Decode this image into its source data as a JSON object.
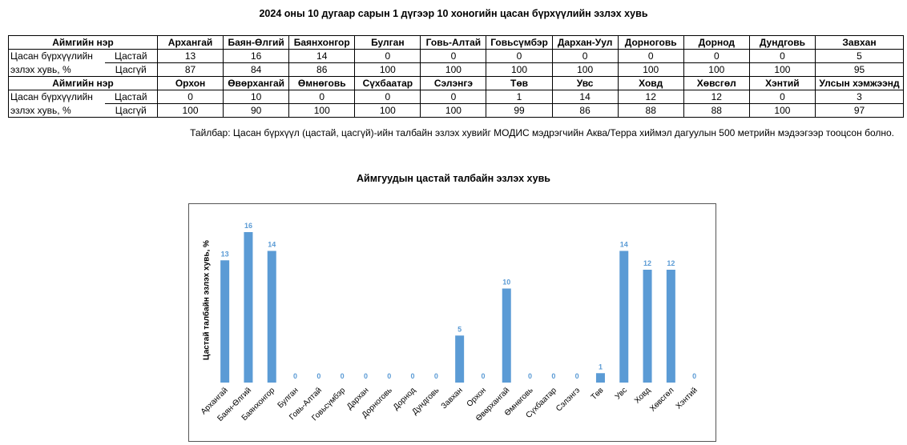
{
  "page_title": "2024 оны 10 дугаар сарын 1 дүгээр 10 хоногийн цасан бүрхүүлийн эзлэх хувь",
  "table": {
    "header_label": "Аймгийн нэр",
    "row_label_1": "Цасан бүрхүүлийн",
    "row_label_2": "эзлэх хувь, %",
    "sub_a": "Цастай",
    "sub_b": "Цасгүй",
    "block1": {
      "names": [
        "Архангай",
        "Баян-Өлгий",
        "Баянхонгор",
        "Булган",
        "Говь-Алтай",
        "Говьсүмбэр",
        "Дархан-Уул",
        "Дорноговь",
        "Дорнод",
        "Дундговь",
        "Завхан"
      ],
      "snow": [
        "13",
        "16",
        "14",
        "0",
        "0",
        "0",
        "0",
        "0",
        "0",
        "0",
        "5"
      ],
      "nosnow": [
        "87",
        "84",
        "86",
        "100",
        "100",
        "100",
        "100",
        "100",
        "100",
        "100",
        "95"
      ]
    },
    "block2": {
      "names": [
        "Орхон",
        "Өвөрхангай",
        "Өмнөговь",
        "Сүхбаатар",
        "Сэлэнгэ",
        "Төв",
        "Увс",
        "Ховд",
        "Хөвсгөл",
        "Хэнтий",
        "Улсын хэмжээнд"
      ],
      "snow": [
        "0",
        "10",
        "0",
        "0",
        "0",
        "1",
        "14",
        "12",
        "12",
        "0",
        "3"
      ],
      "nosnow": [
        "100",
        "90",
        "100",
        "100",
        "100",
        "99",
        "86",
        "88",
        "88",
        "100",
        "97"
      ]
    }
  },
  "note": "Тайлбар: Цасан бүрхүүл (цастай, цасгүй)-ийн талбайн эзлэх хувийг МОДИС мэдрэгчийн Аква/Терра хиймэл дагуулын 500 метрийн мэдээгээр тооцсон болно.",
  "chart_data": {
    "type": "bar",
    "title": "Аймгуудын цастай талбайн эзлэх хувь",
    "ylabel": "Цастай талбайн эзлэх хувь, %",
    "xlabel": "",
    "categories": [
      "Архангай",
      "Баян-Өлгий",
      "Баянхонгор",
      "Булган",
      "Говь-Алтай",
      "Говьсүмбэр",
      "Дархан",
      "Дорноговь",
      "Дорнод",
      "Дундговь",
      "Завхан",
      "Орхон",
      "Өвөрхангай",
      "Өмнөговь",
      "Сүхбаатар",
      "Сэлэнгэ",
      "Төв",
      "Увс",
      "Ховд",
      "Хөвсгөл",
      "Хэнтий"
    ],
    "values": [
      13,
      16,
      14,
      0,
      0,
      0,
      0,
      0,
      0,
      0,
      5,
      0,
      10,
      0,
      0,
      0,
      1,
      14,
      12,
      12,
      0
    ],
    "ylim": [
      0,
      16
    ],
    "grid": false,
    "bar_color": "#5b9bd5",
    "label_color": "#5b9bd5"
  }
}
